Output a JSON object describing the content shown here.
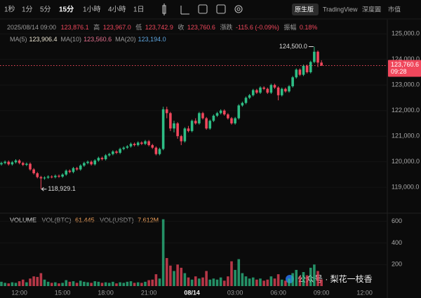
{
  "toolbar": {
    "intervals": [
      "1秒",
      "1分",
      "5分",
      "15分",
      "1小時",
      "4小時",
      "1日"
    ],
    "selected_interval": 3,
    "views": [
      "原生版",
      "TradingView",
      "深度圖",
      "市值"
    ],
    "selected_view": 0
  },
  "ohlc_legend": {
    "date": "2025/08/14 09:00",
    "open": "123,876.1",
    "high_label": "高",
    "high": "123,967.0",
    "low_label": "低",
    "low": "123,742.9",
    "close_label": "收",
    "close": "123,760.6",
    "change_label": "漲跌",
    "change": "-115.6 (-0.09%)",
    "amplitude_label": "振幅",
    "amplitude": "0.18%"
  },
  "ma_legend": [
    {
      "name": "MA(5)",
      "value": "123,906.4",
      "color": "#e9e2cf"
    },
    {
      "name": "MA(10)",
      "value": "123,560.6",
      "color": "#e5708f"
    },
    {
      "name": "MA(20)",
      "value": "123,194.0",
      "color": "#5ea6e0"
    }
  ],
  "watermark": "公众号 · 梨花一枝香",
  "chart_data": {
    "type": "candlestick",
    "up_color": "#2ebd85",
    "down_color": "#f0475c",
    "grid": true,
    "categories": [
      null,
      null,
      null,
      null,
      null,
      "12:00",
      null,
      null,
      null,
      null,
      null,
      null,
      null,
      null,
      null,
      null,
      null,
      "15:00",
      null,
      null,
      null,
      null,
      null,
      null,
      null,
      null,
      null,
      null,
      null,
      "18:00",
      null,
      null,
      null,
      null,
      null,
      null,
      null,
      null,
      null,
      null,
      null,
      "21:00",
      null,
      null,
      null,
      null,
      null,
      null,
      null,
      null,
      null,
      null,
      null,
      "08/14",
      null,
      null,
      null,
      null,
      null,
      null,
      null,
      null,
      null,
      null,
      null,
      "03:00",
      null,
      null,
      null,
      null,
      null,
      null,
      null,
      null,
      null,
      null,
      null,
      "06:00",
      null,
      null,
      null,
      null,
      null,
      null,
      null,
      null,
      null,
      null,
      null,
      "09:00",
      null,
      null,
      null,
      null,
      null,
      null,
      null,
      null,
      null,
      null,
      null,
      "12:00"
    ],
    "open": [
      119900,
      119950,
      120000,
      119900,
      119980,
      120050,
      119950,
      119880,
      119920,
      119700,
      119550,
      119400,
      119350,
      119380,
      119420,
      119400,
      119450,
      119420,
      119500,
      119650,
      119600,
      119750,
      119700,
      119850,
      119950,
      120000,
      119900,
      120050,
      120150,
      120100,
      120250,
      120300,
      120400,
      120350,
      120500,
      120550,
      120600,
      120700,
      120650,
      120750,
      120700,
      120800,
      120650,
      120550,
      120300,
      120500,
      122050,
      121900,
      121300,
      121500,
      121000,
      120800,
      121300,
      121200,
      121600,
      121500,
      121900,
      121700,
      121300,
      121600,
      121800,
      121900,
      122000,
      121850,
      121700,
      121500,
      121700,
      122200,
      122300,
      122500,
      122600,
      122800,
      122700,
      122900,
      122850,
      122700,
      123000,
      122900,
      122600,
      122850,
      122750,
      122950,
      123300,
      123600,
      123400,
      123750,
      123500,
      123900,
      124300,
      123876.1,
      null,
      null,
      null,
      null,
      null,
      null,
      null,
      null,
      null,
      null,
      null,
      null
    ],
    "high": [
      120000,
      120050,
      120050,
      120030,
      120100,
      120100,
      120000,
      119970,
      119970,
      119750,
      119600,
      119450,
      119430,
      119470,
      119470,
      119500,
      119500,
      119550,
      119700,
      119700,
      119800,
      119800,
      119900,
      120000,
      120050,
      120050,
      120100,
      120200,
      120200,
      120300,
      120350,
      120450,
      120450,
      120550,
      120600,
      120650,
      120750,
      120750,
      120800,
      120800,
      120850,
      120850,
      120700,
      120600,
      120550,
      122150,
      122150,
      121950,
      121600,
      121550,
      121050,
      121350,
      121400,
      121650,
      121700,
      121950,
      121950,
      121750,
      121650,
      121850,
      121950,
      122050,
      122050,
      121900,
      121750,
      121750,
      122250,
      122350,
      122550,
      122650,
      122850,
      122850,
      122950,
      122950,
      122900,
      123050,
      123050,
      122950,
      122900,
      122900,
      123000,
      123350,
      123650,
      123650,
      123800,
      123800,
      123950,
      124500,
      124350,
      123967,
      null,
      null,
      null,
      null,
      null,
      null,
      null,
      null,
      null,
      null,
      null,
      null
    ],
    "low": [
      119850,
      119900,
      119850,
      119850,
      119930,
      119900,
      119830,
      119830,
      119650,
      119500,
      119350,
      118929.1,
      119300,
      119330,
      119350,
      119350,
      119370,
      119370,
      119450,
      119550,
      119550,
      119650,
      119650,
      119800,
      119900,
      119850,
      119850,
      120000,
      120050,
      120050,
      120200,
      120250,
      120300,
      120300,
      120450,
      120500,
      120550,
      120600,
      120600,
      120650,
      120650,
      120600,
      120500,
      120250,
      120250,
      120450,
      121700,
      121200,
      121150,
      120900,
      120650,
      120750,
      121150,
      121150,
      121450,
      121450,
      121650,
      121250,
      121250,
      121550,
      121750,
      121850,
      121800,
      121650,
      121450,
      121450,
      121650,
      122150,
      122250,
      122450,
      122550,
      122650,
      122650,
      122800,
      122650,
      122650,
      122850,
      122400,
      122550,
      122700,
      122700,
      122900,
      123250,
      123350,
      123350,
      123450,
      123450,
      123850,
      123700,
      123742.9,
      null,
      null,
      null,
      null,
      null,
      null,
      null,
      null,
      null,
      null,
      null,
      null
    ],
    "close": [
      119950,
      120000,
      119900,
      119980,
      120050,
      119950,
      119880,
      119920,
      119700,
      119550,
      119400,
      119350,
      119380,
      119420,
      119400,
      119450,
      119420,
      119500,
      119650,
      119600,
      119750,
      119700,
      119850,
      119950,
      120000,
      119900,
      120050,
      120150,
      120100,
      120250,
      120300,
      120400,
      120350,
      120500,
      120550,
      120600,
      120700,
      120650,
      120750,
      120700,
      120800,
      120650,
      120550,
      120300,
      120500,
      122050,
      121900,
      121300,
      121500,
      121000,
      120800,
      121300,
      121200,
      121600,
      121500,
      121900,
      121700,
      121300,
      121600,
      121800,
      121900,
      122000,
      121850,
      121700,
      121500,
      121700,
      122200,
      122300,
      122500,
      122600,
      122800,
      122700,
      122900,
      122850,
      122700,
      123000,
      122900,
      122600,
      122850,
      122750,
      122950,
      123300,
      123600,
      123400,
      123750,
      123500,
      123900,
      124300,
      123876.1,
      123760.6,
      null,
      null,
      null,
      null,
      null,
      null,
      null,
      null,
      null,
      null,
      null,
      null
    ],
    "ylim": [
      118100,
      125500
    ],
    "yticks": [
      {
        "value": 125000,
        "label": "125,000.0"
      },
      {
        "value": 124000,
        "label": "124,000.0"
      },
      {
        "value": 123000,
        "label": "123,000.0"
      },
      {
        "value": 122000,
        "label": "122,000.0"
      },
      {
        "value": 121000,
        "label": "121,000.0"
      },
      {
        "value": 120000,
        "label": "120,000.0"
      },
      {
        "value": 119000,
        "label": "119,000.0"
      }
    ],
    "last_price": {
      "value": 123760.6,
      "label": "123,760.6",
      "countdown": "09:28"
    },
    "high_annotation": {
      "value": 124500,
      "label": "124,500.0"
    },
    "low_annotation": {
      "value": 118929.1,
      "label": "118,929.1"
    },
    "volume": {
      "title": "VOLUME",
      "base_label": "VOL(BTC)",
      "quote_label": "VOL(USDT)",
      "quote_value": "7.612M",
      "values": [
        40,
        30,
        25,
        35,
        30,
        45,
        60,
        35,
        70,
        90,
        85,
        120,
        60,
        40,
        30,
        35,
        25,
        30,
        55,
        40,
        45,
        30,
        50,
        40,
        35,
        30,
        45,
        40,
        30,
        35,
        30,
        40,
        25,
        35,
        30,
        40,
        45,
        30,
        35,
        30,
        40,
        55,
        60,
        110,
        70,
        620,
        260,
        190,
        140,
        200,
        170,
        120,
        80,
        60,
        90,
        70,
        80,
        140,
        60,
        70,
        60,
        80,
        50,
        90,
        230,
        150,
        250,
        120,
        90,
        70,
        80,
        60,
        70,
        50,
        60,
        90,
        70,
        110,
        60,
        50,
        70,
        120,
        150,
        90,
        130,
        100,
        170,
        200,
        140,
        61.445,
        null,
        null,
        null,
        null,
        null,
        null,
        null,
        null,
        null,
        null,
        null,
        null
      ],
      "ylim": [
        0,
        670
      ],
      "yticks": [
        200,
        400,
        600
      ]
    }
  }
}
